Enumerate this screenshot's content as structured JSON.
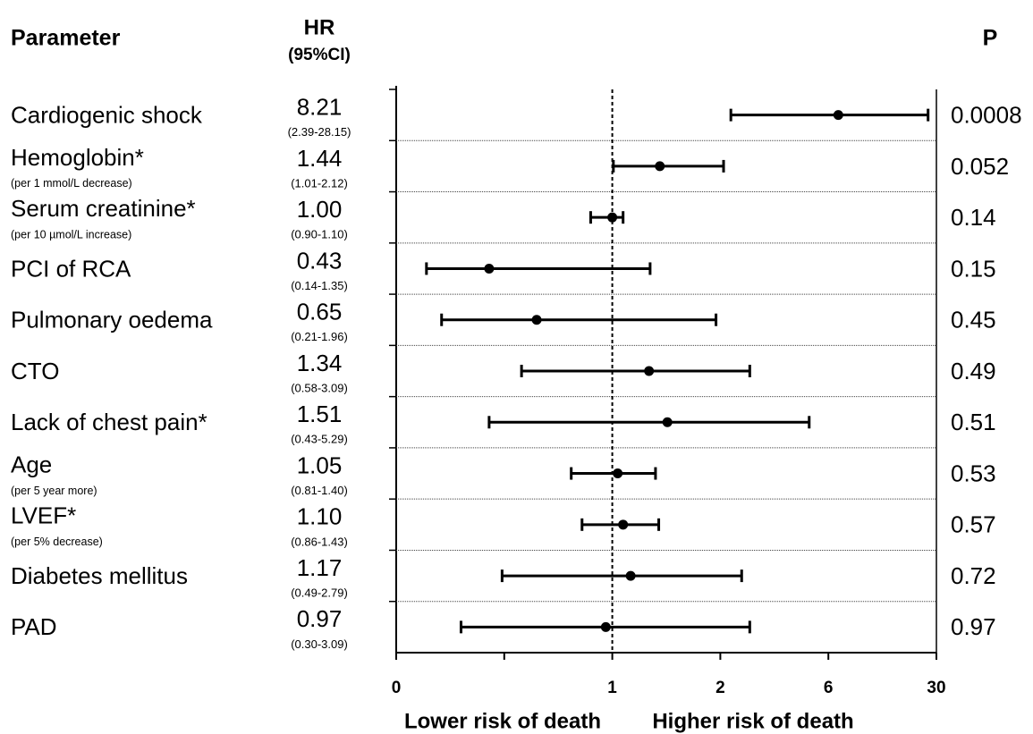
{
  "chart_data": {
    "type": "forest",
    "header_parameter": "Parameter",
    "header_hr": "HR",
    "header_ci": "(95%CI)",
    "header_p": "P",
    "categories": [
      "Cardiogenic shock",
      "Hemoglobin*",
      "Serum creatinine*",
      "PCI of RCA",
      "Pulmonary oedema",
      "CTO",
      "Lack of chest pain*",
      "Age",
      "LVEF*",
      "Diabetes mellitus",
      "PAD"
    ],
    "sublabels": [
      null,
      "(per 1 mmol/L decrease)",
      "(per 10 µmol/L increase)",
      null,
      null,
      null,
      null,
      "(per 5 year more)",
      "(per 5% decrease)",
      null,
      null
    ],
    "values": [
      8.21,
      1.44,
      1.0,
      0.43,
      0.65,
      1.34,
      1.51,
      1.05,
      1.1,
      1.17,
      0.97
    ],
    "value_labels": [
      "8.21",
      "1.44",
      "1.00",
      "0.43",
      "0.65",
      "1.34",
      "1.51",
      "1.05",
      "1.10",
      "1.17",
      "0.97"
    ],
    "ci_low": [
      2.39,
      1.01,
      0.9,
      0.14,
      0.21,
      0.58,
      0.43,
      0.81,
      0.86,
      0.49,
      0.3
    ],
    "ci_high": [
      28.15,
      2.12,
      1.1,
      1.35,
      1.96,
      3.09,
      5.29,
      1.4,
      1.43,
      2.79,
      3.09
    ],
    "ci_labels": [
      "(2.39-28.15)",
      "(1.01-2.12)",
      "(0.90-1.10)",
      "(0.14-1.35)",
      "(0.21-1.96)",
      "(0.58-3.09)",
      "(0.43-5.29)",
      "(0.81-1.40)",
      "(0.86-1.43)",
      "(0.49-2.79)",
      "(0.30-3.09)"
    ],
    "p_values": [
      0.0008,
      0.052,
      0.14,
      0.15,
      0.45,
      0.49,
      0.51,
      0.53,
      0.57,
      0.72,
      0.97
    ],
    "xscale": "piecewise-linear",
    "xlim": [
      0,
      30
    ],
    "xticks": [
      0,
      1,
      2,
      6,
      30
    ],
    "xminor_ticks": [
      0.5
    ],
    "reference_line": 1,
    "xlabel_left": "Lower risk of death",
    "xlabel_right": "Higher risk of death",
    "color": "#000000",
    "grid": true
  }
}
